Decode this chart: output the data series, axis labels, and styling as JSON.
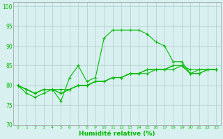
{
  "xlabel": "Humidité relative (%)",
  "xlim": [
    -0.5,
    23.5
  ],
  "ylim": [
    70,
    101
  ],
  "yticks": [
    70,
    75,
    80,
    85,
    90,
    95,
    100
  ],
  "xticks": [
    0,
    1,
    2,
    3,
    4,
    5,
    6,
    7,
    8,
    9,
    10,
    11,
    12,
    13,
    14,
    15,
    16,
    17,
    18,
    19,
    20,
    21,
    22,
    23
  ],
  "bg_color": "#d8f0f0",
  "grid_color": "#b0cccc",
  "line_color": "#00bb00",
  "series1": [
    80,
    78,
    77,
    78,
    79,
    76,
    82,
    85,
    81,
    82,
    92,
    94,
    94,
    94,
    94,
    93,
    91,
    90,
    86,
    86,
    83,
    84,
    84,
    84
  ],
  "series2": [
    80,
    79,
    78,
    79,
    79,
    78,
    79,
    80,
    80,
    81,
    81,
    82,
    82,
    83,
    83,
    83,
    84,
    84,
    85,
    85,
    83,
    83,
    84,
    84
  ],
  "series3": [
    80,
    79,
    78,
    79,
    79,
    78,
    79,
    80,
    80,
    81,
    81,
    82,
    82,
    83,
    83,
    84,
    84,
    84,
    85,
    85,
    84,
    84,
    84,
    84
  ],
  "series4": [
    80,
    79,
    78,
    79,
    79,
    79,
    79,
    80,
    80,
    81,
    81,
    82,
    82,
    83,
    83,
    84,
    84,
    84,
    84,
    85,
    83,
    83,
    84,
    84
  ]
}
